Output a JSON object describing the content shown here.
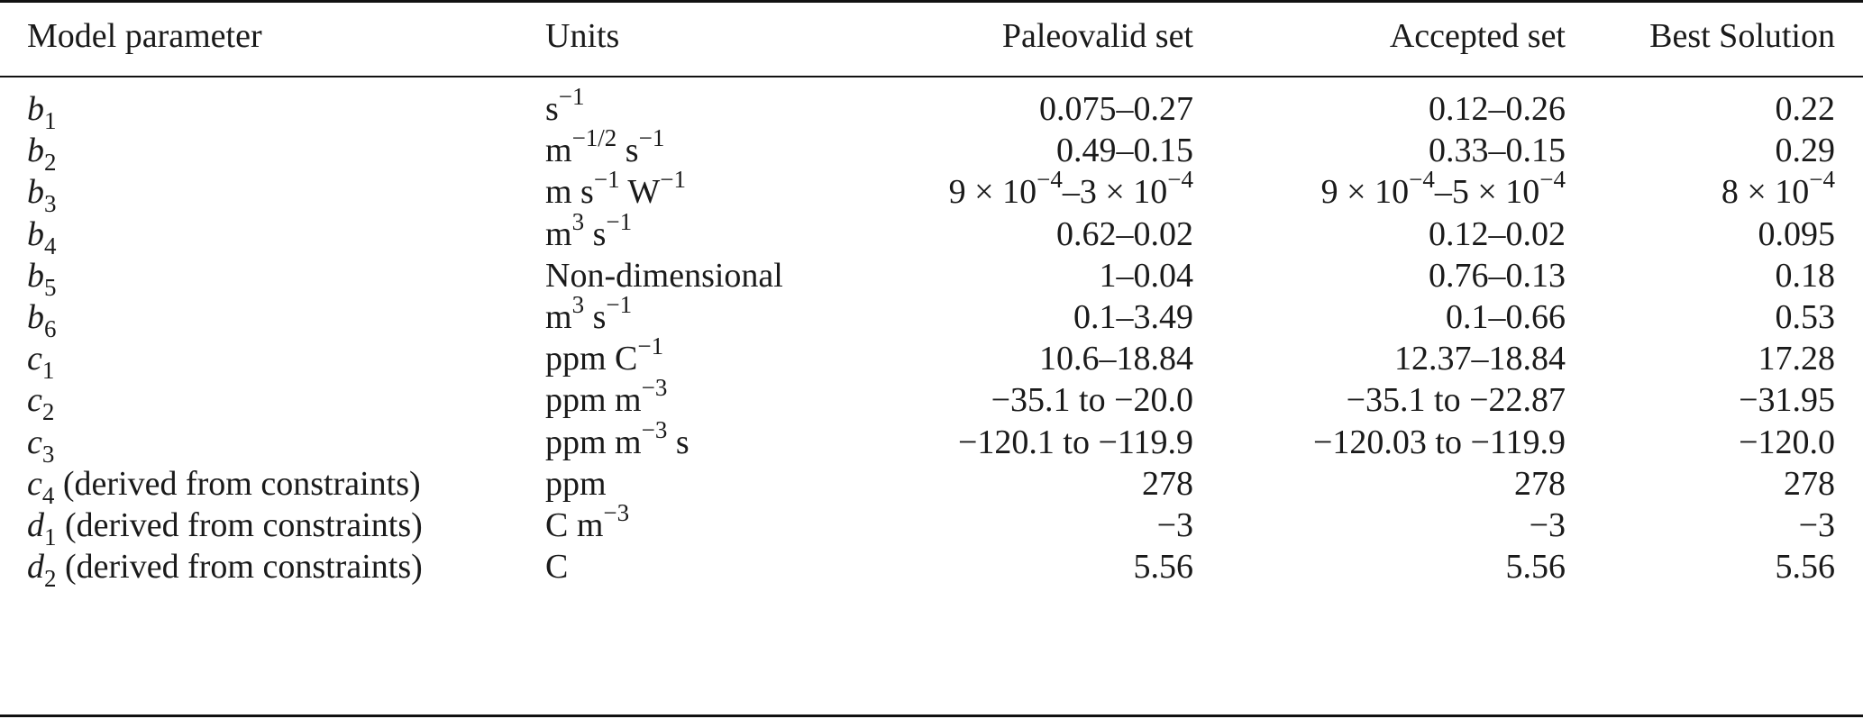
{
  "table": {
    "headers": {
      "param": "Model parameter",
      "units": "Units",
      "paleo": "Paleovalid set",
      "accepted": "Accepted set",
      "best": "Best Solution"
    },
    "rows": [
      {
        "sym": "b",
        "sub": "1",
        "note": "",
        "units": [
          {
            "t": "s"
          },
          {
            "sup": "−1"
          }
        ],
        "paleo": [
          {
            "t": "0.075–0.27"
          }
        ],
        "accepted": [
          {
            "t": "0.12–0.26"
          }
        ],
        "best": [
          {
            "t": "0.22"
          }
        ]
      },
      {
        "sym": "b",
        "sub": "2",
        "note": "",
        "units": [
          {
            "t": "m"
          },
          {
            "sup": "−1/2"
          },
          {
            "t": " s"
          },
          {
            "sup": "−1"
          }
        ],
        "paleo": [
          {
            "t": "0.49–0.15"
          }
        ],
        "accepted": [
          {
            "t": "0.33–0.15"
          }
        ],
        "best": [
          {
            "t": "0.29"
          }
        ]
      },
      {
        "sym": "b",
        "sub": "3",
        "note": "",
        "units": [
          {
            "t": "m s"
          },
          {
            "sup": "−1"
          },
          {
            "t": " W"
          },
          {
            "sup": "−1"
          }
        ],
        "paleo": [
          {
            "t": "9 × 10"
          },
          {
            "sup": "−4"
          },
          {
            "t": "–3 × 10"
          },
          {
            "sup": "−4"
          }
        ],
        "accepted": [
          {
            "t": "9 × 10"
          },
          {
            "sup": "−4"
          },
          {
            "t": "–5 × 10"
          },
          {
            "sup": "−4"
          }
        ],
        "best": [
          {
            "t": "8 × 10"
          },
          {
            "sup": "−4"
          }
        ]
      },
      {
        "sym": "b",
        "sub": "4",
        "note": "",
        "units": [
          {
            "t": "m"
          },
          {
            "sup": "3"
          },
          {
            "t": " s"
          },
          {
            "sup": "−1"
          }
        ],
        "paleo": [
          {
            "t": "0.62–0.02"
          }
        ],
        "accepted": [
          {
            "t": "0.12–0.02"
          }
        ],
        "best": [
          {
            "t": "0.095"
          }
        ]
      },
      {
        "sym": "b",
        "sub": "5",
        "note": "",
        "units": [
          {
            "t": "Non-dimensional"
          }
        ],
        "paleo": [
          {
            "t": "1–0.04"
          }
        ],
        "accepted": [
          {
            "t": "0.76–0.13"
          }
        ],
        "best": [
          {
            "t": "0.18"
          }
        ]
      },
      {
        "sym": "b",
        "sub": "6",
        "note": "",
        "units": [
          {
            "t": "m"
          },
          {
            "sup": "3"
          },
          {
            "t": " s"
          },
          {
            "sup": "−1"
          }
        ],
        "paleo": [
          {
            "t": "0.1–3.49"
          }
        ],
        "accepted": [
          {
            "t": "0.1–0.66"
          }
        ],
        "best": [
          {
            "t": "0.53"
          }
        ]
      },
      {
        "sym": "c",
        "sub": "1",
        "note": "",
        "units": [
          {
            "t": "ppm C"
          },
          {
            "sup": "−1"
          }
        ],
        "paleo": [
          {
            "t": "10.6–18.84"
          }
        ],
        "accepted": [
          {
            "t": "12.37–18.84"
          }
        ],
        "best": [
          {
            "t": "17.28"
          }
        ]
      },
      {
        "sym": "c",
        "sub": "2",
        "note": "",
        "units": [
          {
            "t": "ppm m"
          },
          {
            "sup": "−3"
          }
        ],
        "paleo": [
          {
            "t": "−35.1 to −20.0"
          }
        ],
        "accepted": [
          {
            "t": "−35.1 to −22.87"
          }
        ],
        "best": [
          {
            "t": "−31.95"
          }
        ]
      },
      {
        "sym": "c",
        "sub": "3",
        "note": "",
        "units": [
          {
            "t": "ppm m"
          },
          {
            "sup": "−3"
          },
          {
            "t": " s"
          }
        ],
        "paleo": [
          {
            "t": "−120.1 to −119.9"
          }
        ],
        "accepted": [
          {
            "t": "−120.03 to −119.9"
          }
        ],
        "best": [
          {
            "t": "−120.0"
          }
        ]
      },
      {
        "sym": "c",
        "sub": "4",
        "note": " (derived from constraints)",
        "units": [
          {
            "t": "ppm"
          }
        ],
        "paleo": [
          {
            "t": "278"
          }
        ],
        "accepted": [
          {
            "t": "278"
          }
        ],
        "best": [
          {
            "t": "278"
          }
        ]
      },
      {
        "sym": "d",
        "sub": "1",
        "note": " (derived from constraints)",
        "units": [
          {
            "t": "C m"
          },
          {
            "sup": "−3"
          }
        ],
        "paleo": [
          {
            "t": "−3"
          }
        ],
        "accepted": [
          {
            "t": "−3"
          }
        ],
        "best": [
          {
            "t": "−3"
          }
        ]
      },
      {
        "sym": "d",
        "sub": "2",
        "note": " (derived from constraints)",
        "units": [
          {
            "t": "C"
          }
        ],
        "paleo": [
          {
            "t": "5.56"
          }
        ],
        "accepted": [
          {
            "t": "5.56"
          }
        ],
        "best": [
          {
            "t": "5.56"
          }
        ]
      }
    ]
  }
}
